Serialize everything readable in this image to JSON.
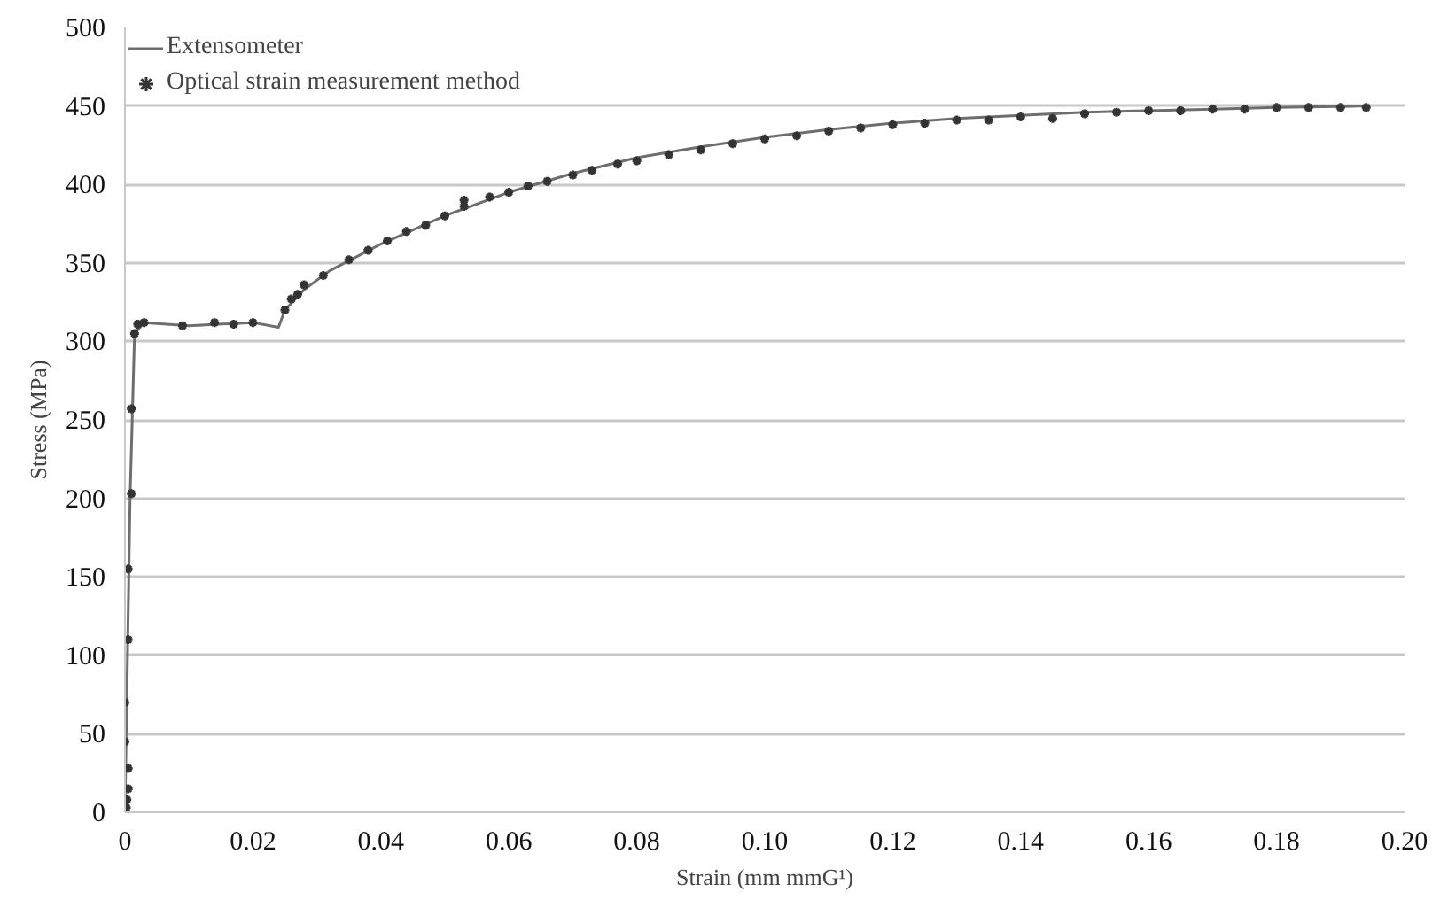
{
  "chart_data": {
    "type": "line",
    "xlabel": "Strain (mm mmG¹)",
    "ylabel": "Stress (MPa)",
    "xlim": [
      0,
      0.2
    ],
    "ylim": [
      0,
      500
    ],
    "xticks": [
      0,
      0.02,
      0.04,
      0.06,
      0.08,
      {
        "value": 0.1,
        "label": "0.10"
      },
      0.12,
      0.14,
      0.16,
      0.18,
      {
        "value": 0.2,
        "label": "0.20"
      }
    ],
    "yticks": [
      0,
      50,
      100,
      150,
      200,
      250,
      300,
      350,
      400,
      450,
      500
    ],
    "grid": "y",
    "legend": "top left",
    "series": [
      {
        "name": "Extensometer",
        "color": "#6e6e6e",
        "x": [
          0,
          0.0008,
          0.0015,
          0.003,
          0.01,
          0.02,
          0.024,
          0.025,
          0.028,
          0.032,
          0.04,
          0.05,
          0.06,
          0.07,
          0.08,
          0.09,
          0.1,
          0.11,
          0.12,
          0.13,
          0.14,
          0.15,
          0.16,
          0.17,
          0.18,
          0.194
        ],
        "values": [
          0,
          200,
          305,
          312,
          310,
          312,
          309,
          320,
          333,
          345,
          362,
          380,
          395,
          407,
          417,
          424,
          430,
          435,
          439,
          442,
          444,
          446,
          447,
          448,
          449,
          450
        ]
      },
      {
        "name": "Optical strain measurement method",
        "type": "scatter",
        "color": "#333333",
        "marker": "cross",
        "x": [
          0,
          0.0002,
          0.0003,
          0.0005,
          0.0005,
          0,
          0,
          0.0005,
          0.0005,
          0.001,
          0.001,
          0.0015,
          0.002,
          0.003,
          0.009,
          0.014,
          0.017,
          0.02,
          0.025,
          0.026,
          0.027,
          0.028,
          0.031,
          0.035,
          0.038,
          0.041,
          0.044,
          0.047,
          0.05,
          0.053,
          0.053,
          0.057,
          0.06,
          0.063,
          0.066,
          0.07,
          0.073,
          0.077,
          0.08,
          0.085,
          0.09,
          0.095,
          0.1,
          0.105,
          0.11,
          0.115,
          0.12,
          0.125,
          0.13,
          0.135,
          0.14,
          0.145,
          0.15,
          0.155,
          0.16,
          0.165,
          0.17,
          0.175,
          0.18,
          0.185,
          0.19,
          0.194
        ],
        "values": [
          0,
          3,
          8,
          15,
          28,
          45,
          70,
          110,
          155,
          203,
          257,
          305,
          311,
          312,
          310,
          312,
          311,
          312,
          320,
          327,
          330,
          336,
          342,
          352,
          358,
          364,
          370,
          374,
          380,
          386,
          390,
          392,
          395,
          399,
          402,
          406,
          409,
          413,
          415,
          419,
          422,
          426,
          429,
          431,
          434,
          436,
          438,
          439,
          441,
          441,
          443,
          442,
          445,
          446,
          447,
          447,
          448,
          448,
          449,
          449,
          449,
          449
        ]
      }
    ]
  }
}
